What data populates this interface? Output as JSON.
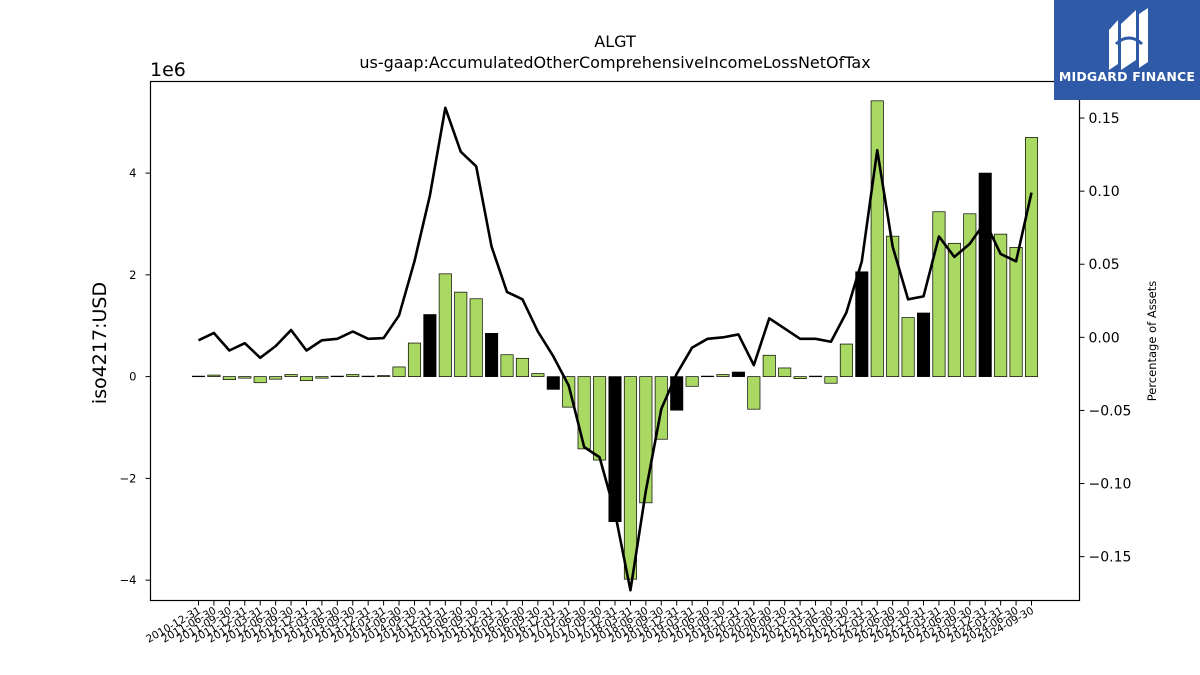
{
  "chart_data": {
    "type": "bar",
    "title": "ALGT",
    "subtitle": "us-gaap:AccumulatedOtherComprehensiveIncomeLossNetOfTax",
    "ylabel": "iso4217:USD",
    "y_scale_label": "1e6",
    "y2label": "Percentage of Assets",
    "ylim": [
      -4.4,
      5.8
    ],
    "y2lim": [
      -0.18,
      0.175
    ],
    "yticks": [
      -4,
      -2,
      0,
      2,
      4
    ],
    "y2ticks": [
      -0.15,
      -0.1,
      -0.05,
      0.0,
      0.05,
      0.1,
      0.15
    ],
    "ytick_labels": [
      "−4",
      "−2",
      "0",
      "2",
      "4"
    ],
    "y2tick_labels": [
      "−0.15",
      "−0.10",
      "−0.05",
      "0.00",
      "0.05",
      "0.10",
      "0.15"
    ],
    "categories": [
      "2010-12-31",
      "2011-06-30",
      "2011-09-30",
      "2011-12-31",
      "2012-03-31",
      "2012-06-30",
      "2012-09-30",
      "2012-12-31",
      "2013-03-31",
      "2013-06-30",
      "2013-09-30",
      "2013-12-31",
      "2014-03-31",
      "2014-06-30",
      "2014-09-30",
      "2014-12-31",
      "2015-03-31",
      "2015-06-30",
      "2015-09-30",
      "2015-12-31",
      "2016-03-31",
      "2016-06-30",
      "2016-09-30",
      "2016-12-31",
      "2017-03-31",
      "2017-06-30",
      "2017-09-30",
      "2017-12-31",
      "2018-03-31",
      "2018-06-30",
      "2018-09-30",
      "2018-12-31",
      "2019-03-31",
      "2019-06-30",
      "2019-09-30",
      "2019-12-31",
      "2020-03-31",
      "2020-06-30",
      "2020-09-30",
      "2020-12-31",
      "2021-03-31",
      "2021-06-30",
      "2021-09-30",
      "2021-12-31",
      "2022-03-31",
      "2022-06-30",
      "2022-09-30",
      "2022-12-31",
      "2023-03-31",
      "2023-06-30",
      "2023-09-30",
      "2023-12-31",
      "2024-03-31",
      "2024-06-30",
      "2024-09-30"
    ],
    "values": [
      0.01,
      0.03,
      -0.06,
      -0.03,
      -0.12,
      -0.05,
      0.04,
      -0.08,
      -0.03,
      0.01,
      0.04,
      0.01,
      0.02,
      0.19,
      0.66,
      1.22,
      2.02,
      1.66,
      1.53,
      0.85,
      0.43,
      0.36,
      0.06,
      -0.25,
      -0.6,
      -1.42,
      -1.64,
      -2.85,
      -3.98,
      -2.48,
      -1.23,
      -0.66,
      -0.19,
      0.01,
      0.04,
      0.09,
      -0.64,
      0.42,
      0.17,
      -0.04,
      0.01,
      -0.13,
      0.64,
      2.06,
      5.42,
      2.76,
      1.16,
      1.25,
      3.24,
      2.62,
      3.2,
      4.0,
      2.8,
      2.54,
      4.7
    ],
    "highlight_indices": [
      15,
      19,
      23,
      27,
      31,
      35,
      43,
      47,
      51
    ],
    "pct_of_assets": [
      -0.002,
      0.003,
      -0.009,
      -0.004,
      -0.014,
      -0.006,
      0.005,
      -0.009,
      -0.002,
      -0.001,
      0.004,
      -0.001,
      -0.0005,
      0.015,
      0.052,
      0.097,
      0.157,
      0.127,
      0.117,
      0.062,
      0.031,
      0.026,
      0.004,
      -0.013,
      -0.033,
      -0.075,
      -0.082,
      -0.12,
      -0.173,
      -0.105,
      -0.049,
      -0.025,
      -0.007,
      -0.001,
      0.0,
      0.002,
      -0.019,
      0.013,
      0.006,
      -0.001,
      -0.001,
      -0.003,
      0.017,
      0.052,
      0.128,
      0.062,
      0.026,
      0.028,
      0.069,
      0.055,
      0.064,
      0.079,
      0.057,
      0.052,
      0.099
    ],
    "colors": {
      "bar": "#a9d962",
      "bar_highlight": "#000000",
      "line": "#000000"
    }
  },
  "logo": {
    "text": "MIDGARD FINANCE",
    "bg_color": "#2e5aa8",
    "fg_color": "#ffffff"
  }
}
